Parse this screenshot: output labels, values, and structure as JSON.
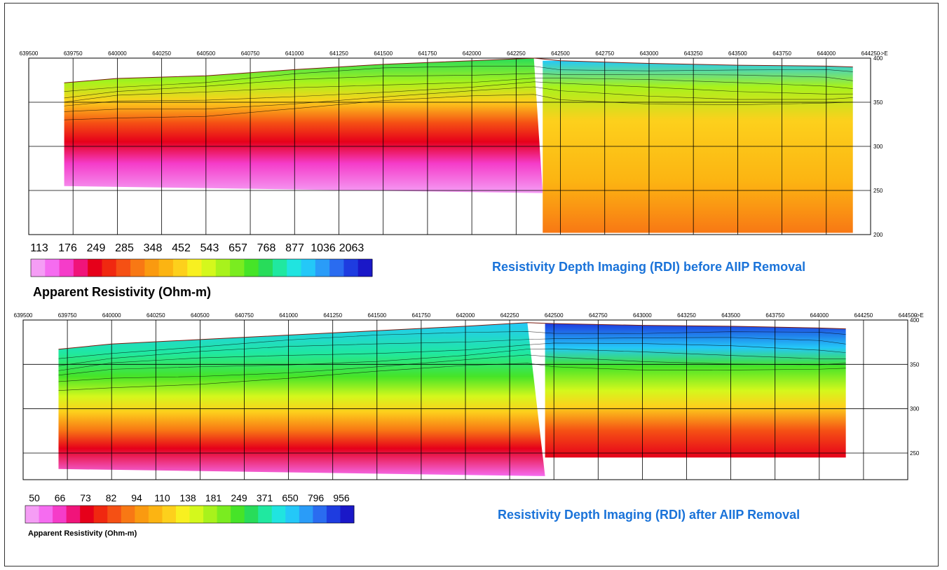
{
  "chart_data": [
    {
      "type": "heatmap",
      "title": "Resistivity Depth Imaging (RDI) before AIIP Removal",
      "colorbar_title": "Apparent Resistivity (Ohm-m)",
      "colorbar_labels": [
        "113",
        "176",
        "249",
        "285",
        "348",
        "452",
        "543",
        "657",
        "768",
        "877",
        "1036",
        "2063"
      ],
      "colorbar_colors": [
        "#f59df5",
        "#f56cf0",
        "#f53cc9",
        "#f0147a",
        "#e6001a",
        "#f02810",
        "#f55014",
        "#f87814",
        "#fa9a10",
        "#fcb412",
        "#fdd01c",
        "#f8f020",
        "#d4f81c",
        "#a8f21c",
        "#7aec20",
        "#46e428",
        "#28dc5a",
        "#20e8a0",
        "#20e4e0",
        "#24c8f8",
        "#2a9cf8",
        "#2a6cf0",
        "#1e3ce0",
        "#1a18c8"
      ],
      "x_axis_label": "->E",
      "x_ticks": [
        639500,
        639750,
        640000,
        640250,
        640500,
        640750,
        641000,
        641250,
        641500,
        641750,
        642000,
        642250,
        642500,
        642750,
        643000,
        643250,
        643500,
        643750,
        644000,
        644250
      ],
      "y_ticks": [
        400,
        350,
        300,
        250,
        200
      ],
      "xlim": [
        639500,
        644250
      ],
      "ylim": [
        200,
        400
      ],
      "grid": true,
      "surface": [
        [
          639700,
          372
        ],
        [
          640000,
          377
        ],
        [
          640500,
          380
        ],
        [
          641000,
          387
        ],
        [
          641500,
          393
        ],
        [
          642000,
          397
        ],
        [
          642350,
          400
        ],
        [
          642500,
          397
        ],
        [
          643000,
          394
        ],
        [
          643500,
          392
        ],
        [
          644000,
          391
        ],
        [
          644150,
          390
        ]
      ]
    },
    {
      "type": "heatmap",
      "title": "Resistivity Depth Imaging (RDI) after AIIP Removal",
      "colorbar_title": "Apparent Resistivity (Ohm-m)",
      "colorbar_labels": [
        "50",
        "66",
        "73",
        "82",
        "94",
        "110",
        "138",
        "181",
        "249",
        "371",
        "650",
        "796",
        "956"
      ],
      "colorbar_colors": [
        "#f59df5",
        "#f56cf0",
        "#f53cc9",
        "#f0147a",
        "#e6001a",
        "#f02810",
        "#f55014",
        "#f87814",
        "#fa9a10",
        "#fcb412",
        "#fdd01c",
        "#f8f020",
        "#d4f81c",
        "#a8f21c",
        "#7aec20",
        "#46e428",
        "#28dc5a",
        "#20e8a0",
        "#20e4e0",
        "#24c8f8",
        "#2a9cf8",
        "#2a6cf0",
        "#1e3ce0",
        "#1a18c8"
      ],
      "x_axis_label": "->E",
      "x_ticks": [
        639500,
        639750,
        640000,
        640250,
        640500,
        640750,
        641000,
        641250,
        641500,
        641750,
        642000,
        642250,
        642500,
        642750,
        643000,
        643250,
        643500,
        643750,
        644000,
        644250,
        644500
      ],
      "y_ticks": [
        400,
        350,
        300,
        250
      ],
      "xlim": [
        639500,
        644500
      ],
      "ylim": [
        220,
        400
      ],
      "grid": true,
      "surface": [
        [
          639700,
          367
        ],
        [
          640000,
          373
        ],
        [
          640500,
          378
        ],
        [
          641000,
          383
        ],
        [
          641500,
          388
        ],
        [
          642000,
          393
        ],
        [
          642350,
          397
        ],
        [
          642500,
          396
        ],
        [
          643000,
          394
        ],
        [
          643500,
          393
        ],
        [
          644000,
          391
        ],
        [
          644150,
          390
        ]
      ]
    }
  ]
}
